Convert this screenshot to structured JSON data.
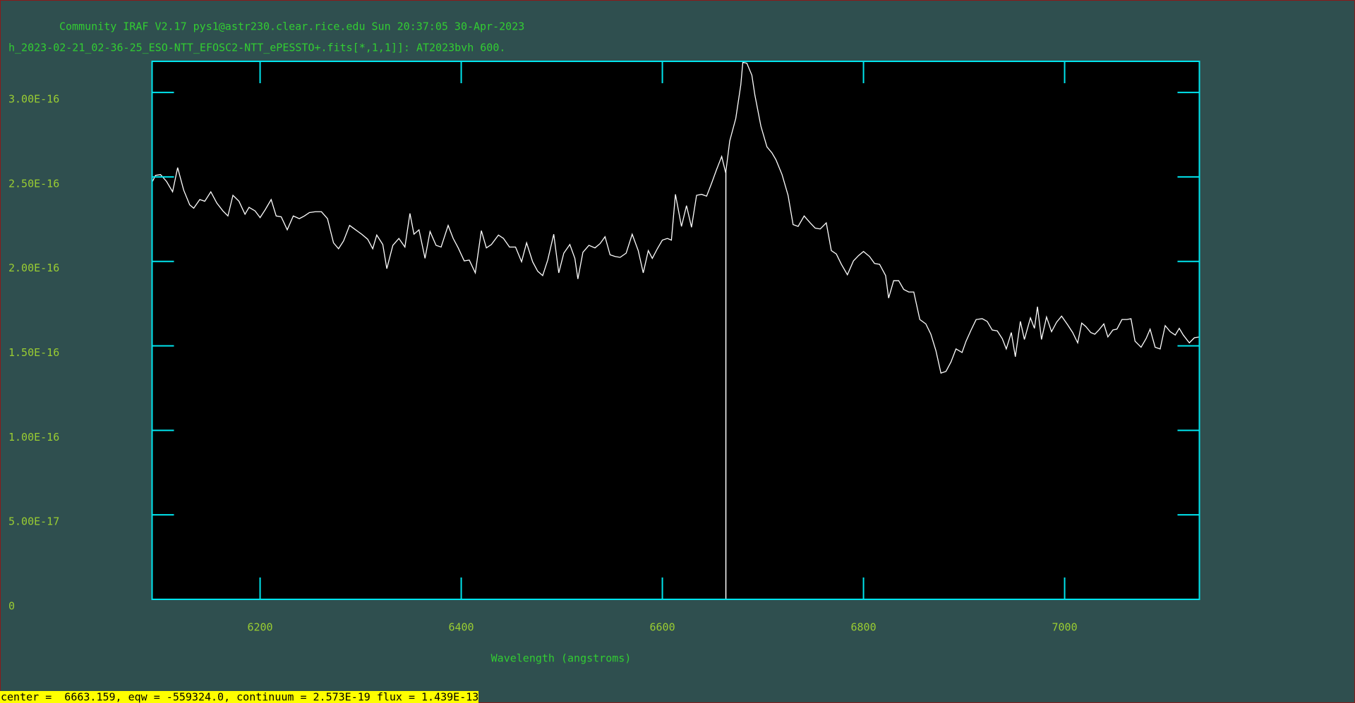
{
  "chart_data": {
    "type": "line",
    "title": "Community IRAF V2.17 pys1@astr230.clear.rice.edu Sun 20:37:05 30-Apr-2023",
    "subtitle": "h_2023-02-21_02-36-25_ESO-NTT_EFOSC2-NTT_ePESSTO+.fits[*,1,1]]: AT2023bvh 600.",
    "xlabel": "Wavelength (angstroms)",
    "color": "#ffffff",
    "xlim": [
      6092.6,
      7134
    ],
    "xticks": [
      6200,
      6400,
      6600,
      6800,
      7000
    ],
    "ylim": [
      0,
      3.184e-16
    ],
    "yticks": [
      0,
      {
        "value": 5e-17,
        "label": "5.00E-17"
      },
      {
        "value": 1e-16,
        "label": "1.00E-16"
      },
      {
        "value": 1.5e-16,
        "label": "1.50E-16"
      },
      {
        "value": 2e-16,
        "label": "2.00E-16"
      },
      {
        "value": 2.5e-16,
        "label": "2.50E-16"
      },
      {
        "value": 3e-16,
        "label": "3.00E-16"
      }
    ],
    "vline_x": 6663.159,
    "x": [
      6093,
      6096,
      6101,
      6107,
      6113,
      6118,
      6124,
      6130,
      6134,
      6140,
      6145,
      6151,
      6157,
      6163,
      6168,
      6173,
      6179,
      6185,
      6189,
      6195,
      6200,
      6205,
      6211,
      6216,
      6221,
      6227,
      6233,
      6239,
      6244,
      6249,
      6255,
      6261,
      6267,
      6273,
      6278,
      6283,
      6289,
      6295,
      6301,
      6307,
      6312,
      6316,
      6322,
      6326,
      6332,
      6338,
      6344,
      6349,
      6353,
      6358,
      6364,
      6369,
      6375,
      6380,
      6387,
      6392,
      6397,
      6403,
      6408,
      6414,
      6420,
      6425,
      6430,
      6437,
      6442,
      6448,
      6454,
      6460,
      6465,
      6471,
      6476,
      6481,
      6486,
      6492,
      6497,
      6502,
      6508,
      6513,
      6516,
      6521,
      6527,
      6533,
      6538,
      6543,
      6548,
      6553,
      6558,
      6564,
      6570,
      6576,
      6581,
      6586,
      6590,
      6595,
      6600,
      6605,
      6609,
      6613,
      6619,
      6624,
      6629,
      6634,
      6639,
      6644,
      6649,
      6654,
      6659,
      6663,
      6667,
      6673,
      6678,
      6680,
      6684,
      6689,
      6692,
      6698,
      6704,
      6709,
      6713,
      6719,
      6725,
      6730,
      6735,
      6741,
      6747,
      6752,
      6757,
      6763,
      6768,
      6773,
      6778,
      6784,
      6790,
      6795,
      6800,
      6806,
      6811,
      6816,
      6822,
      6825,
      6830,
      6835,
      6840,
      6845,
      6850,
      6856,
      6862,
      6867,
      6872,
      6877,
      6882,
      6887,
      6892,
      6898,
      6902,
      6907,
      6912,
      6918,
      6923,
      6928,
      6933,
      6938,
      6942,
      6947,
      6951,
      6956,
      6960,
      6966,
      6970,
      6973,
      6977,
      6982,
      6987,
      6992,
      6997,
      7003,
      7008,
      7013,
      7017,
      7021,
      7026,
      7030,
      7034,
      7039,
      7043,
      7048,
      7052,
      7057,
      7062,
      7066,
      7070,
      7076,
      7081,
      7085,
      7090,
      7095,
      7100,
      7105,
      7110,
      7114,
      7118,
      7124,
      7129,
      7134
    ],
    "values": [
      2.473e-16,
      2.509e-16,
      2.514e-16,
      2.473e-16,
      2.412e-16,
      2.555e-16,
      2.422e-16,
      2.335e-16,
      2.315e-16,
      2.366e-16,
      2.356e-16,
      2.412e-16,
      2.345e-16,
      2.299e-16,
      2.269e-16,
      2.391e-16,
      2.356e-16,
      2.279e-16,
      2.32e-16,
      2.299e-16,
      2.259e-16,
      2.305e-16,
      2.366e-16,
      2.269e-16,
      2.264e-16,
      2.187e-16,
      2.269e-16,
      2.253e-16,
      2.269e-16,
      2.289e-16,
      2.294e-16,
      2.294e-16,
      2.253e-16,
      2.11e-16,
      2.075e-16,
      2.121e-16,
      2.213e-16,
      2.187e-16,
      2.161e-16,
      2.131e-16,
      2.075e-16,
      2.156e-16,
      2.1e-16,
      1.957e-16,
      2.095e-16,
      2.136e-16,
      2.085e-16,
      2.284e-16,
      2.161e-16,
      2.187e-16,
      2.018e-16,
      2.177e-16,
      2.095e-16,
      2.085e-16,
      2.213e-16,
      2.136e-16,
      2.08e-16,
      2.003e-16,
      2.008e-16,
      1.932e-16,
      2.182e-16,
      2.08e-16,
      2.1e-16,
      2.156e-16,
      2.136e-16,
      2.085e-16,
      2.085e-16,
      1.998e-16,
      2.11e-16,
      1.998e-16,
      1.942e-16,
      1.916e-16,
      2.008e-16,
      2.161e-16,
      1.932e-16,
      2.049e-16,
      2.1e-16,
      2.018e-16,
      1.896e-16,
      2.054e-16,
      2.095e-16,
      2.08e-16,
      2.105e-16,
      2.146e-16,
      2.039e-16,
      2.029e-16,
      2.024e-16,
      2.049e-16,
      2.161e-16,
      2.064e-16,
      1.932e-16,
      2.064e-16,
      2.018e-16,
      2.075e-16,
      2.126e-16,
      2.136e-16,
      2.126e-16,
      2.397e-16,
      2.207e-16,
      2.33e-16,
      2.202e-16,
      2.391e-16,
      2.397e-16,
      2.386e-16,
      2.463e-16,
      2.545e-16,
      2.621e-16,
      2.524e-16,
      2.713e-16,
      2.846e-16,
      3.045e-16,
      3.178e-16,
      3.173e-16,
      3.102e-16,
      2.984e-16,
      2.8e-16,
      2.678e-16,
      2.642e-16,
      2.601e-16,
      2.514e-16,
      2.391e-16,
      2.218e-16,
      2.207e-16,
      2.269e-16,
      2.228e-16,
      2.197e-16,
      2.192e-16,
      2.228e-16,
      2.064e-16,
      2.044e-16,
      1.983e-16,
      1.921e-16,
      2.003e-16,
      2.034e-16,
      2.059e-16,
      2.029e-16,
      1.988e-16,
      1.983e-16,
      1.916e-16,
      1.783e-16,
      1.886e-16,
      1.886e-16,
      1.834e-16,
      1.819e-16,
      1.819e-16,
      1.656e-16,
      1.63e-16,
      1.569e-16,
      1.472e-16,
      1.339e-16,
      1.349e-16,
      1.405e-16,
      1.482e-16,
      1.461e-16,
      1.528e-16,
      1.594e-16,
      1.656e-16,
      1.661e-16,
      1.645e-16,
      1.594e-16,
      1.589e-16,
      1.543e-16,
      1.482e-16,
      1.579e-16,
      1.436e-16,
      1.645e-16,
      1.538e-16,
      1.666e-16,
      1.604e-16,
      1.732e-16,
      1.538e-16,
      1.671e-16,
      1.584e-16,
      1.64e-16,
      1.676e-16,
      1.625e-16,
      1.579e-16,
      1.518e-16,
      1.635e-16,
      1.615e-16,
      1.579e-16,
      1.569e-16,
      1.594e-16,
      1.63e-16,
      1.553e-16,
      1.594e-16,
      1.599e-16,
      1.656e-16,
      1.656e-16,
      1.661e-16,
      1.528e-16,
      1.492e-16,
      1.543e-16,
      1.599e-16,
      1.492e-16,
      1.482e-16,
      1.62e-16,
      1.584e-16,
      1.564e-16,
      1.604e-16,
      1.564e-16,
      1.518e-16,
      1.548e-16,
      1.553e-16
    ]
  },
  "status": "center =  6663.159, eqw = -559324.0, continuum = 2.573E-19 flux = 1.439E-13"
}
